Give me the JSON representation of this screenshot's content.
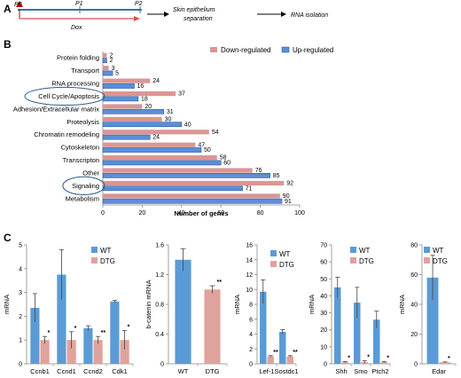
{
  "colors": {
    "wt": "#5B9BD5",
    "dtg": "#E0A29C",
    "up": "#5B8ED6",
    "down": "#D99694",
    "timeline": "#2E75B6",
    "dox": "#D9534F",
    "circle": "#2F5D8A"
  },
  "panel_a": {
    "letter": "A",
    "timepoints": [
      "P0",
      "P1",
      "P2"
    ],
    "dox_label": "Dox",
    "step1": "Skin epithelium",
    "step1b": "separation",
    "step2": "RNA isolation"
  },
  "panel_b": {
    "letter": "B",
    "legend": [
      "Down-regulated",
      "Up-regulated"
    ],
    "xlabel": "Number of genes",
    "circled": [
      "Cell Cycle/Apoptosis",
      "Signaling"
    ]
  },
  "panel_c": {
    "letter": "C",
    "legend": [
      "WT",
      "DTG"
    ]
  },
  "chart_data": [
    {
      "type": "bar",
      "orientation": "horizontal",
      "categories": [
        "Protein folding",
        "Transport",
        "RNA processing",
        "Cell Cycle/Apoptosis",
        "Adhesion/Extracellular matrix",
        "Proteolysis",
        "Chromatin remodeling",
        "Cytoskeleton",
        "Transcripton",
        "Other",
        "Signaling",
        "Metabolism"
      ],
      "series": [
        {
          "name": "Down-regulated",
          "values": [
            2,
            3,
            24,
            37,
            20,
            30,
            54,
            47,
            58,
            76,
            92,
            90
          ]
        },
        {
          "name": "Up-regulated",
          "values": [
            2,
            5,
            16,
            18,
            31,
            40,
            24,
            50,
            60,
            85,
            71,
            91
          ]
        }
      ],
      "xlabel": "Number of genes",
      "xlim": [
        0,
        100
      ],
      "xticks": [
        "0",
        "20",
        "40",
        "60",
        "80",
        "100"
      ],
      "legend_position": "top-right"
    },
    {
      "type": "bar",
      "categories": [
        "Ccnb1",
        "Ccnd1",
        "Ccnd2",
        "Cdk1"
      ],
      "series": [
        {
          "name": "WT",
          "values": [
            2.35,
            3.75,
            1.5,
            2.62
          ],
          "errors": [
            0.6,
            1.05,
            0.1,
            0.05
          ]
        },
        {
          "name": "DTG",
          "values": [
            1.0,
            1.0,
            1.0,
            1.0
          ],
          "errors": [
            0.15,
            0.35,
            0.15,
            0.4
          ],
          "significance": [
            "*",
            "*",
            "**",
            "*"
          ]
        }
      ],
      "ylabel": "mRNA",
      "ylim": [
        0,
        5
      ],
      "yticks": [
        "0",
        "1",
        "2",
        "3",
        "4",
        "5"
      ],
      "legend_position": "top-right"
    },
    {
      "type": "bar",
      "categories": [
        "WT",
        "DTG"
      ],
      "series": [
        {
          "name": "b-catenin mRNA",
          "values": [
            1.4,
            1.0
          ],
          "errors": [
            0.15,
            0.05
          ],
          "significance": [
            "",
            "**"
          ]
        }
      ],
      "ylabel": "b-catenin mRNA",
      "ylim": [
        0,
        1.6
      ],
      "yticks": [
        "0",
        "0.4",
        "0.8",
        "1.2",
        "1.6"
      ]
    },
    {
      "type": "bar",
      "categories": [
        "Lef-1",
        "Sostdc1"
      ],
      "series": [
        {
          "name": "WT",
          "values": [
            9.7,
            4.3
          ],
          "errors": [
            1.6,
            0.3
          ]
        },
        {
          "name": "DTG",
          "values": [
            1.0,
            1.0
          ],
          "errors": [
            0.1,
            0.1
          ],
          "significance": [
            "**",
            "**"
          ]
        }
      ],
      "ylabel": "mRNA",
      "ylim": [
        0,
        16
      ],
      "yticks": [
        "0",
        "2",
        "4",
        "6",
        "8",
        "10",
        "12",
        "14",
        "16"
      ],
      "legend_position": "top-right"
    },
    {
      "type": "bar",
      "categories": [
        "Shh",
        "Smo",
        "Ptch2"
      ],
      "series": [
        {
          "name": "WT",
          "values": [
            45,
            36,
            26
          ],
          "errors": [
            6,
            9,
            5
          ]
        },
        {
          "name": "DTG",
          "values": [
            1,
            1,
            1
          ],
          "errors": [
            0.3,
            0.8,
            0.3
          ],
          "significance": [
            "*",
            "*",
            "*"
          ]
        }
      ],
      "ylabel": "mRNA",
      "ylim": [
        0,
        70
      ],
      "yticks": [
        "0",
        "10",
        "20",
        "30",
        "40",
        "50",
        "60",
        "70"
      ],
      "legend_position": "top-right"
    },
    {
      "type": "bar",
      "categories": [
        "Edar"
      ],
      "series": [
        {
          "name": "WT",
          "values": [
            58
          ],
          "errors": [
            15
          ]
        },
        {
          "name": "DTG",
          "values": [
            1
          ],
          "errors": [
            0.3
          ],
          "significance": [
            "*"
          ]
        }
      ],
      "ylabel": "mRNA",
      "ylim": [
        0,
        80
      ],
      "yticks": [
        "0",
        "20",
        "40",
        "60",
        "80"
      ],
      "legend_position": "top-right"
    }
  ]
}
